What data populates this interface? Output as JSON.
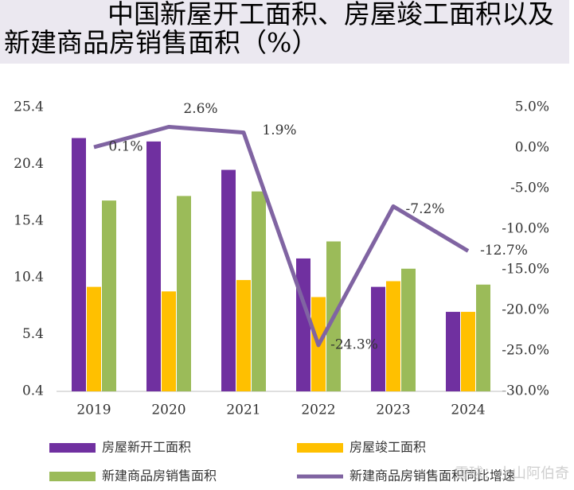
{
  "chart_data": {
    "type": "bar-line",
    "title": "中国新屋开工面积、房屋竣工面积以及新建商品房销售面积（%）",
    "categories": [
      "2019",
      "2020",
      "2021",
      "2022",
      "2023",
      "2024"
    ],
    "series": [
      {
        "name": "房屋新开工面积",
        "color": "#7030a0",
        "values": [
          22.7,
          22.4,
          19.9,
          12.1,
          9.6,
          7.4
        ]
      },
      {
        "name": "房屋竣工面积",
        "color": "#ffc000",
        "values": [
          9.6,
          9.2,
          10.2,
          8.7,
          10.1,
          7.4
        ]
      },
      {
        "name": "新建商品房销售面积",
        "color": "#9bbb59",
        "values": [
          17.2,
          17.6,
          18.0,
          13.6,
          11.2,
          9.8
        ]
      },
      {
        "name": "新建商品房销售面积同比增速",
        "color": "#8064a2",
        "type": "line",
        "axis": "y2",
        "values": [
          0.1,
          2.6,
          1.9,
          -24.3,
          -7.2,
          -12.7
        ],
        "value_labels": [
          "0.1%",
          "2.6%",
          "1.9%",
          "-24.3%",
          "-7.2%",
          "-12.7%"
        ]
      }
    ],
    "ylim": [
      0.4,
      25.4
    ],
    "yticks": [
      0.4,
      5.4,
      10.4,
      15.4,
      20.4,
      25.4
    ],
    "y2lim": [
      -30,
      5
    ],
    "y2ticks": [
      {
        "value": 5,
        "label": "5.0%"
      },
      {
        "value": 0,
        "label": "0.0%"
      },
      {
        "value": -5,
        "label": "-5.0%"
      },
      {
        "value": -10,
        "label": "-10.0%"
      },
      {
        "value": -15,
        "label": "-15.0%"
      },
      {
        "value": -20,
        "label": "-20.0%"
      },
      {
        "value": -25,
        "label": "-25.0%"
      },
      {
        "value": -30,
        "label": "-30.0%"
      }
    ],
    "watermark": "雪球：小山阿伯奇"
  }
}
